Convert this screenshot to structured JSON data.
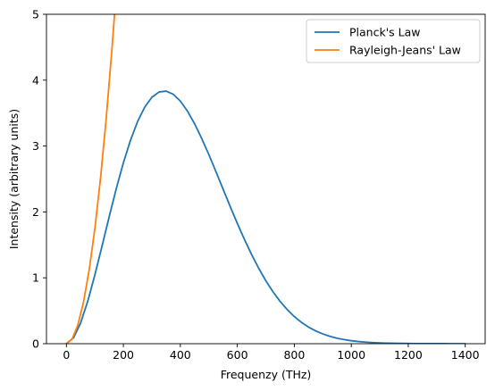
{
  "chart_data": {
    "type": "line",
    "xlabel": "Frequenzy (THz)",
    "ylabel": "Intensity (arbitrary units)",
    "xlim": [
      -70,
      1470
    ],
    "ylim": [
      0,
      5
    ],
    "xticks": [
      0,
      200,
      400,
      600,
      800,
      1000,
      1200,
      1400
    ],
    "yticks": [
      0,
      1,
      2,
      3,
      4,
      5
    ],
    "grid": false,
    "legend_position": "top-right",
    "series": [
      {
        "name": "Planck's Law",
        "color": "#1f77b4",
        "x": [
          0,
          25,
          50,
          75,
          100,
          125,
          150,
          175,
          200,
          225,
          250,
          275,
          300,
          325,
          350,
          375,
          400,
          425,
          450,
          475,
          500,
          525,
          550,
          575,
          600,
          625,
          650,
          675,
          700,
          725,
          750,
          775,
          800,
          825,
          850,
          875,
          900,
          925,
          950,
          975,
          1000,
          1025,
          1050,
          1075,
          1100,
          1125,
          1150,
          1175,
          1200,
          1225,
          1250,
          1275,
          1300,
          1325,
          1350,
          1375,
          1400
        ],
        "y": [
          0.0,
          0.089,
          0.316,
          0.646,
          1.045,
          1.48,
          1.924,
          2.352,
          2.745,
          3.089,
          3.373,
          3.591,
          3.74,
          3.82,
          3.834,
          3.786,
          3.682,
          3.53,
          3.338,
          3.115,
          2.87,
          2.611,
          2.346,
          2.082,
          1.826,
          1.582,
          1.354,
          1.145,
          0.956,
          0.789,
          0.643,
          0.518,
          0.412,
          0.324,
          0.252,
          0.194,
          0.148,
          0.112,
          0.083,
          0.062,
          0.045,
          0.033,
          0.024,
          0.017,
          0.012,
          0.009,
          0.006,
          0.004,
          0.003,
          0.002,
          0.0014,
          0.001,
          0.0007,
          0.0005,
          0.0003,
          0.0002,
          0.0001
        ]
      },
      {
        "name": "Rayleigh-Jeans' Law",
        "color": "#ff7f0e",
        "x": [
          0,
          20,
          40,
          60,
          80,
          100,
          120,
          140,
          160,
          170
        ],
        "y": [
          0.0,
          0.07,
          0.28,
          0.63,
          1.12,
          1.75,
          2.52,
          3.43,
          4.48,
          5.06
        ]
      }
    ]
  }
}
